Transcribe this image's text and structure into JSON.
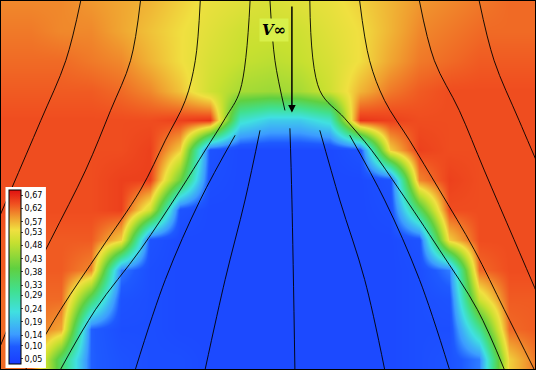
{
  "chart_data": {
    "type": "heatmap",
    "tick_labels": false,
    "x": [
      0,
      30,
      60,
      90,
      120,
      150,
      180,
      210,
      240,
      270,
      300,
      330,
      360,
      390,
      420,
      450,
      480,
      510,
      540
    ],
    "y": [
      0,
      30,
      60,
      90,
      120,
      150,
      180,
      210,
      240,
      270,
      300,
      330,
      360
    ],
    "xlim": [
      0,
      536
    ],
    "ylim": [
      370,
      0
    ],
    "z": [
      [
        0.6,
        0.6,
        0.6,
        0.59,
        0.58,
        0.57,
        0.55,
        0.53,
        0.52,
        0.51,
        0.52,
        0.53,
        0.55,
        0.57,
        0.59,
        0.6,
        0.61,
        0.62,
        0.62
      ],
      [
        0.61,
        0.61,
        0.6,
        0.6,
        0.58,
        0.56,
        0.54,
        0.52,
        0.5,
        0.5,
        0.5,
        0.52,
        0.54,
        0.57,
        0.6,
        0.61,
        0.62,
        0.62,
        0.62
      ],
      [
        0.62,
        0.62,
        0.62,
        0.61,
        0.6,
        0.57,
        0.54,
        0.51,
        0.49,
        0.48,
        0.49,
        0.51,
        0.54,
        0.58,
        0.61,
        0.62,
        0.63,
        0.63,
        0.63
      ],
      [
        0.63,
        0.63,
        0.63,
        0.63,
        0.62,
        0.6,
        0.56,
        0.5,
        0.46,
        0.45,
        0.46,
        0.5,
        0.57,
        0.61,
        0.63,
        0.64,
        0.64,
        0.64,
        0.64
      ],
      [
        0.64,
        0.64,
        0.64,
        0.64,
        0.64,
        0.64,
        0.65,
        0.66,
        0.25,
        0.2,
        0.2,
        0.25,
        0.66,
        0.65,
        0.64,
        0.64,
        0.64,
        0.64,
        0.64
      ],
      [
        0.64,
        0.64,
        0.64,
        0.64,
        0.64,
        0.65,
        0.55,
        0.08,
        0.06,
        0.06,
        0.06,
        0.06,
        0.08,
        0.55,
        0.65,
        0.64,
        0.64,
        0.64,
        0.64
      ],
      [
        0.64,
        0.64,
        0.64,
        0.64,
        0.65,
        0.65,
        0.4,
        0.07,
        0.06,
        0.06,
        0.06,
        0.06,
        0.06,
        0.08,
        0.6,
        0.65,
        0.64,
        0.64,
        0.64
      ],
      [
        0.64,
        0.64,
        0.64,
        0.64,
        0.65,
        0.5,
        0.08,
        0.06,
        0.06,
        0.06,
        0.06,
        0.06,
        0.06,
        0.07,
        0.35,
        0.64,
        0.64,
        0.64,
        0.64
      ],
      [
        0.63,
        0.63,
        0.63,
        0.63,
        0.55,
        0.08,
        0.06,
        0.06,
        0.06,
        0.06,
        0.06,
        0.06,
        0.06,
        0.06,
        0.08,
        0.55,
        0.64,
        0.64,
        0.64
      ],
      [
        0.63,
        0.63,
        0.63,
        0.6,
        0.12,
        0.07,
        0.06,
        0.06,
        0.06,
        0.06,
        0.06,
        0.06,
        0.06,
        0.06,
        0.07,
        0.12,
        0.62,
        0.64,
        0.64
      ],
      [
        0.62,
        0.62,
        0.62,
        0.35,
        0.08,
        0.07,
        0.06,
        0.06,
        0.06,
        0.06,
        0.06,
        0.06,
        0.06,
        0.06,
        0.07,
        0.08,
        0.5,
        0.63,
        0.63
      ],
      [
        0.62,
        0.62,
        0.58,
        0.1,
        0.07,
        0.07,
        0.06,
        0.06,
        0.06,
        0.06,
        0.06,
        0.06,
        0.06,
        0.06,
        0.07,
        0.07,
        0.3,
        0.62,
        0.63
      ],
      [
        0.62,
        0.62,
        0.35,
        0.1,
        0.08,
        0.07,
        0.07,
        0.06,
        0.06,
        0.06,
        0.06,
        0.06,
        0.06,
        0.06,
        0.07,
        0.08,
        0.12,
        0.55,
        0.62
      ]
    ],
    "zlim": [
      0.03,
      0.69
    ],
    "zticks": [
      {
        "value": 0.67,
        "label": "0,67"
      },
      {
        "value": 0.62,
        "label": "0,62"
      },
      {
        "value": 0.57,
        "label": "0,57"
      },
      {
        "value": 0.53,
        "label": "0,53"
      },
      {
        "value": 0.48,
        "label": "0,48"
      },
      {
        "value": 0.43,
        "label": "0,43"
      },
      {
        "value": 0.38,
        "label": "0,38"
      },
      {
        "value": 0.33,
        "label": "0,33"
      },
      {
        "value": 0.29,
        "label": "0,29"
      },
      {
        "value": 0.24,
        "label": "0,24"
      },
      {
        "value": 0.19,
        "label": "0,19"
      },
      {
        "value": 0.14,
        "label": "0,14"
      },
      {
        "value": 0.1,
        "label": "0,10"
      },
      {
        "value": 0.05,
        "label": "0,05"
      }
    ],
    "streamlines": [
      {
        "x": [
          270,
          275,
          285
        ],
        "y": [
          0,
          60,
          110
        ]
      },
      {
        "x": [
          250,
          240,
          225,
          205,
          180,
          140,
          95,
          60
        ],
        "y": [
          0,
          90,
          118,
          150,
          190,
          250,
          310,
          370
        ]
      },
      {
        "x": [
          200,
          195,
          185,
          165,
          140,
          100,
          60,
          25
        ],
        "y": [
          0,
          60,
          100,
          140,
          190,
          250,
          310,
          370
        ]
      },
      {
        "x": [
          140,
          130,
          110,
          85,
          50,
          15,
          -10
        ],
        "y": [
          0,
          60,
          110,
          170,
          240,
          310,
          370
        ]
      },
      {
        "x": [
          80,
          65,
          40,
          10,
          -20
        ],
        "y": [
          0,
          60,
          120,
          190,
          260
        ]
      },
      {
        "x": [
          310,
          320,
          345,
          372,
          400,
          440,
          478,
          505
        ],
        "y": [
          0,
          90,
          118,
          150,
          190,
          250,
          310,
          370
        ]
      },
      {
        "x": [
          360,
          370,
          385,
          410,
          440,
          475,
          505,
          535
        ],
        "y": [
          0,
          60,
          100,
          140,
          190,
          250,
          310,
          370
        ]
      },
      {
        "x": [
          420,
          435,
          460,
          485,
          515,
          545
        ],
        "y": [
          0,
          60,
          110,
          170,
          240,
          310
        ]
      },
      {
        "x": [
          480,
          495,
          520,
          550
        ],
        "y": [
          0,
          60,
          120,
          190
        ]
      },
      {
        "x": [
          290,
          292,
          295
        ],
        "y": [
          128,
          200,
          370
        ]
      },
      {
        "x": [
          260,
          245,
          225,
          205
        ],
        "y": [
          130,
          200,
          280,
          370
        ]
      },
      {
        "x": [
          320,
          340,
          365,
          385
        ],
        "y": [
          130,
          200,
          280,
          370
        ]
      },
      {
        "x": [
          235,
          200,
          165,
          135
        ],
        "y": [
          135,
          200,
          280,
          370
        ]
      },
      {
        "x": [
          350,
          385,
          420,
          450
        ],
        "y": [
          135,
          200,
          280,
          370
        ]
      }
    ],
    "annotations": [
      {
        "text": "V∞",
        "x": 292,
        "y": 112,
        "ax": 292,
        "ay": 4
      }
    ]
  }
}
